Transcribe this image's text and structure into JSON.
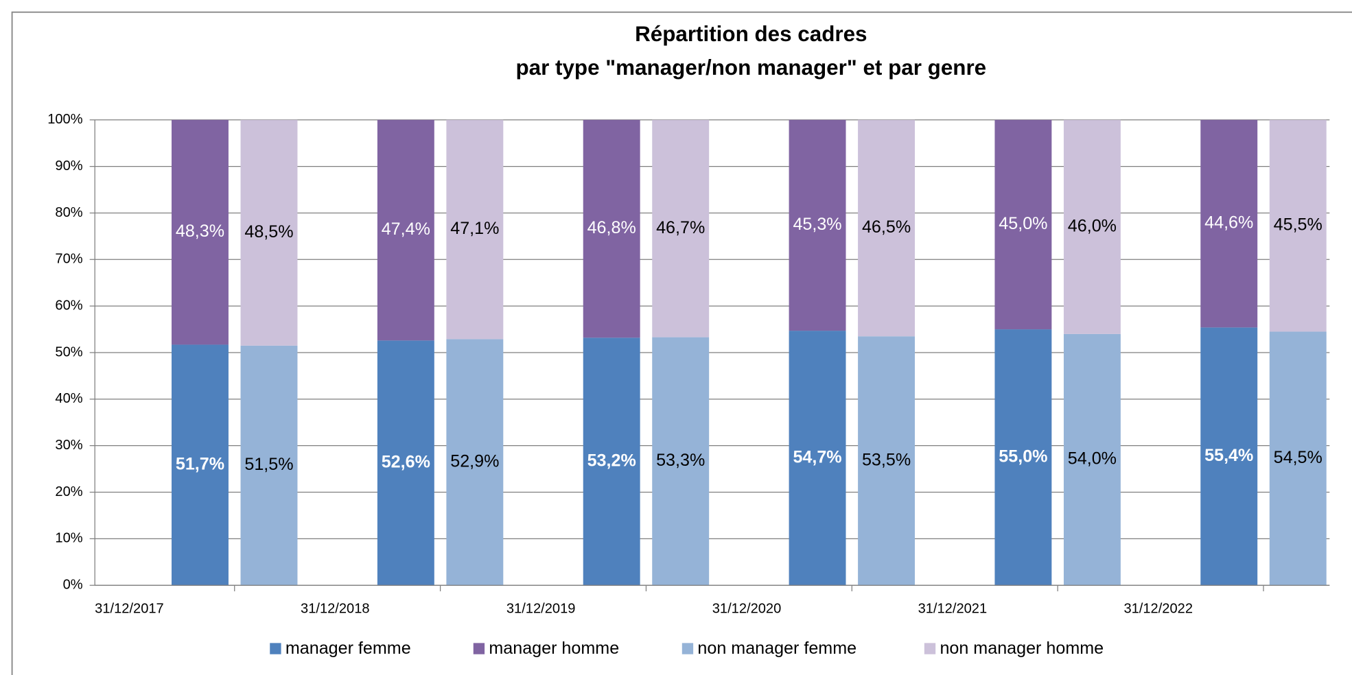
{
  "chart_data": {
    "type": "bar",
    "title": "Répartition des cadres",
    "subtitle": "par type \"manager/non manager\" et par genre",
    "categories": [
      "31/12/2017",
      "31/12/2018",
      "31/12/2019",
      "31/12/2020",
      "31/12/2021",
      "31/12/2022"
    ],
    "series": [
      {
        "name": "manager femme",
        "color": "#4f81bd",
        "values": [
          51.7,
          52.6,
          53.2,
          54.7,
          55.0,
          55.4
        ],
        "value_labels": [
          "51,7%",
          "52,6%",
          "53,2%",
          "54,7%",
          "55,0%",
          "55,4%"
        ]
      },
      {
        "name": "manager homme",
        "color": "#8064a2",
        "values": [
          48.3,
          47.4,
          46.8,
          45.3,
          45.0,
          44.6
        ],
        "value_labels": [
          "48,3%",
          "47,4%",
          "46,8%",
          "45,3%",
          "45,0%",
          "44,6%"
        ]
      },
      {
        "name": "non manager femme",
        "color": "#95b3d7",
        "values": [
          51.5,
          52.9,
          53.3,
          53.5,
          54.0,
          54.5
        ],
        "value_labels": [
          "51,5%",
          "52,9%",
          "53,3%",
          "53,5%",
          "54,0%",
          "54,5%"
        ]
      },
      {
        "name": "non manager homme",
        "color": "#ccc1da",
        "values": [
          48.5,
          47.1,
          46.7,
          46.5,
          46.0,
          45.5
        ],
        "value_labels": [
          "48,5%",
          "47,1%",
          "46,7%",
          "46,5%",
          "46,0%",
          "45,5%"
        ]
      }
    ],
    "ylim": [
      0,
      100
    ],
    "yticks": [
      {
        "value": 0,
        "label": "0%"
      },
      {
        "value": 10,
        "label": "10%"
      },
      {
        "value": 20,
        "label": "20%"
      },
      {
        "value": 30,
        "label": "30%"
      },
      {
        "value": 40,
        "label": "40%"
      },
      {
        "value": 50,
        "label": "50%"
      },
      {
        "value": 60,
        "label": "60%"
      },
      {
        "value": 70,
        "label": "70%"
      },
      {
        "value": 80,
        "label": "80%"
      },
      {
        "value": 90,
        "label": "90%"
      },
      {
        "value": 100,
        "label": "100%"
      }
    ],
    "grid": true,
    "legend": "bottom"
  }
}
